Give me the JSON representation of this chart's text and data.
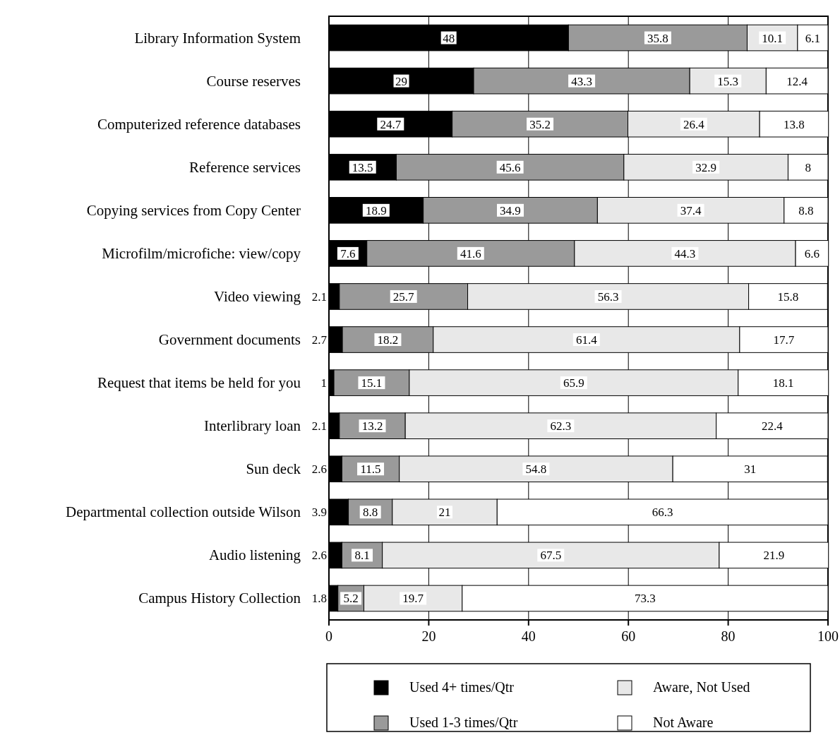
{
  "chart_data": {
    "type": "bar",
    "orientation": "horizontal",
    "stacked": true,
    "categories": [
      "Library Information System",
      "Course reserves",
      "Computerized reference databases",
      "Reference services",
      "Copying services from Copy Center",
      "Microfilm/microfiche: view/copy",
      "Video viewing",
      "Government documents",
      "Request that items be held for you",
      "Interlibrary loan",
      "Sun deck",
      "Departmental collection outside Wilson",
      "Audio listening",
      "Campus History Collection"
    ],
    "series": [
      {
        "name": "Used 4+ times/Qtr",
        "color": "#000000",
        "values": [
          48,
          29,
          24.7,
          13.5,
          18.9,
          7.6,
          2.1,
          2.7,
          1,
          2.1,
          2.6,
          3.9,
          2.6,
          1.8
        ]
      },
      {
        "name": "Used 1-3 times/Qtr",
        "color": "#9a9a9a",
        "values": [
          35.8,
          43.3,
          35.2,
          45.6,
          34.9,
          41.6,
          25.7,
          18.2,
          15.1,
          13.2,
          11.5,
          8.8,
          8.1,
          5.2
        ]
      },
      {
        "name": "Aware, Not Used",
        "color": "#e8e8e8",
        "values": [
          10.1,
          15.3,
          26.4,
          32.9,
          37.4,
          44.3,
          56.3,
          61.4,
          65.9,
          62.3,
          54.8,
          21,
          67.5,
          19.7
        ]
      },
      {
        "name": "Not Aware",
        "color": "#ffffff",
        "values": [
          6.1,
          12.4,
          13.8,
          8,
          8.8,
          6.6,
          15.8,
          17.7,
          18.1,
          22.4,
          31,
          66.3,
          21.9,
          73.3
        ]
      }
    ],
    "xlim": [
      0,
      100
    ],
    "xticks": [
      0,
      20,
      40,
      60,
      80,
      100
    ],
    "grid": "x",
    "data_labels": true,
    "legend": "bottom"
  }
}
